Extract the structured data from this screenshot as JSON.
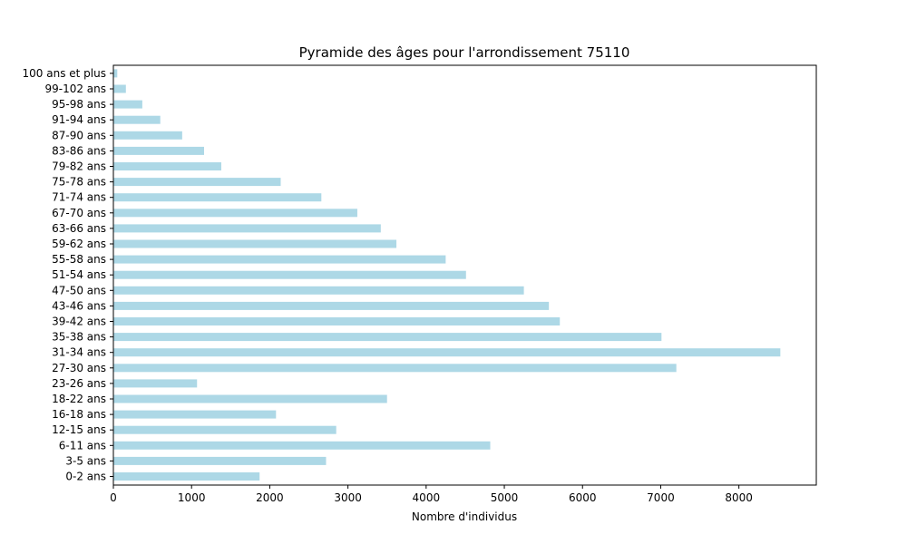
{
  "chart_data": {
    "type": "bar",
    "orientation": "horizontal",
    "title": "Pyramide des âges pour l'arrondissement 75110",
    "xlabel": "Nombre d'individus",
    "ylabel": "",
    "xlim": [
      0,
      8990
    ],
    "xticks": [
      0,
      1000,
      2000,
      3000,
      4000,
      5000,
      6000,
      7000,
      8000
    ],
    "grid": false,
    "bar_color": "#add8e6",
    "categories": [
      "0-2 ans",
      "3-5 ans",
      "6-11 ans",
      "12-15 ans",
      "16-18 ans",
      "18-22 ans",
      "23-26 ans",
      "27-30 ans",
      "31-34 ans",
      "35-38 ans",
      "39-42 ans",
      "43-46 ans",
      "47-50 ans",
      "51-54 ans",
      "55-58 ans",
      "59-62 ans",
      "63-66 ans",
      "67-70 ans",
      "71-74 ans",
      "75-78 ans",
      "79-82 ans",
      "83-86 ans",
      "87-90 ans",
      "91-94 ans",
      "95-98 ans",
      "99-102 ans",
      "100 ans et plus"
    ],
    "values": [
      1870,
      2720,
      4820,
      2850,
      2080,
      3500,
      1070,
      7200,
      8530,
      7010,
      5710,
      5570,
      5250,
      4510,
      4250,
      3620,
      3420,
      3120,
      2660,
      2140,
      1380,
      1160,
      880,
      600,
      370,
      160,
      50
    ]
  }
}
